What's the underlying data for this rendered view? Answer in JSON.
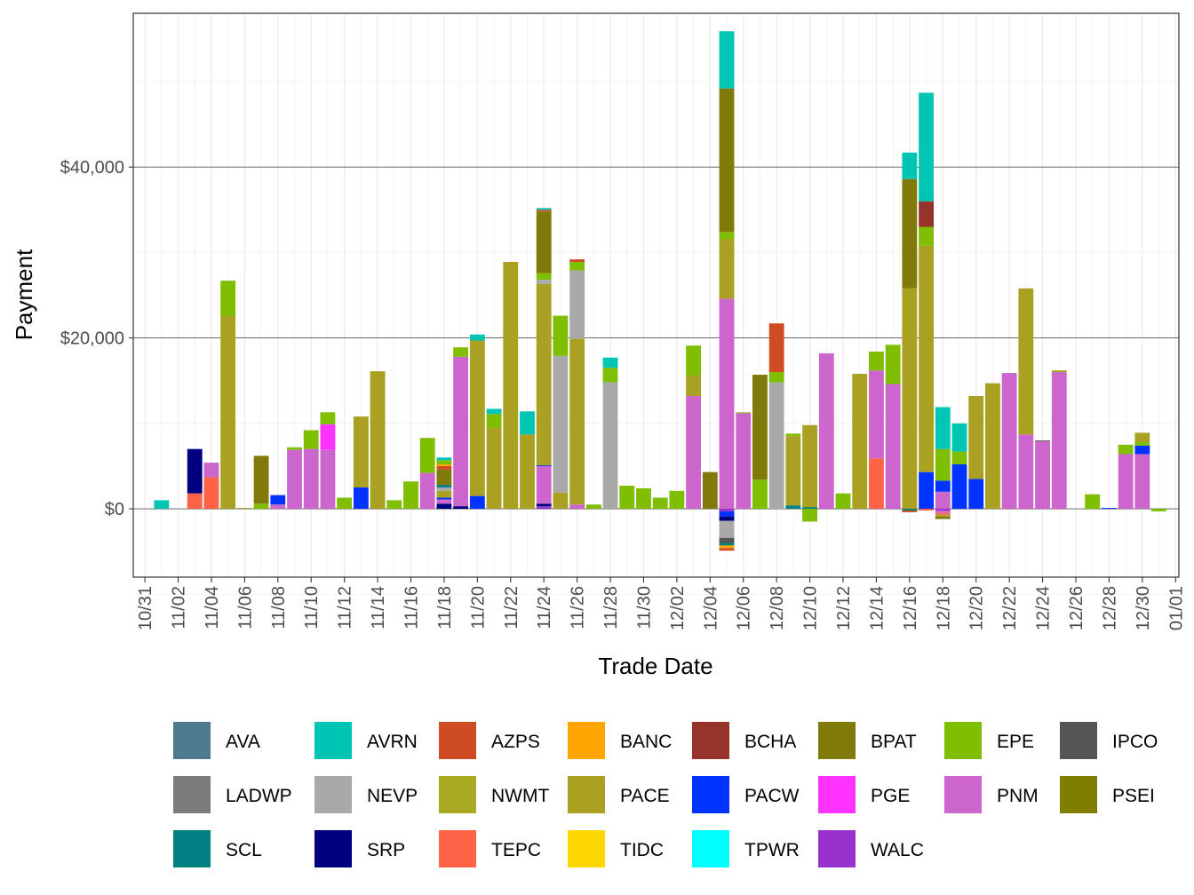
{
  "chart_data": {
    "type": "bar",
    "stacked": true,
    "title": "",
    "xlabel": "Trade Date",
    "ylabel": "Payment",
    "ylim": [
      -8000,
      58000
    ],
    "yticks": [
      0,
      20000,
      40000
    ],
    "ytick_labels": [
      "$0",
      "$20,000",
      "$40,000"
    ],
    "xlim": [
      -0.7,
      62.2
    ],
    "xticks": [
      0,
      2,
      4,
      6,
      8,
      10,
      12,
      14,
      16,
      18,
      20,
      22,
      24,
      26,
      28,
      30,
      32,
      34,
      36,
      38,
      40,
      42,
      44,
      46,
      48,
      50,
      52,
      54,
      56,
      58,
      60,
      62
    ],
    "xtick_labels": [
      "10/31",
      "11/02",
      "11/04",
      "11/06",
      "11/08",
      "11/10",
      "11/12",
      "11/14",
      "11/16",
      "11/18",
      "11/20",
      "11/22",
      "11/24",
      "11/26",
      "11/28",
      "11/30",
      "12/02",
      "12/04",
      "12/06",
      "12/08",
      "12/10",
      "12/12",
      "12/14",
      "12/16",
      "12/18",
      "12/20",
      "12/22",
      "12/24",
      "12/26",
      "12/28",
      "12/30",
      "01/01"
    ],
    "x_units": "days since 10/31",
    "grid": true,
    "legend_position": "bottom",
    "legend": [
      "AVA",
      "AVRN",
      "AZPS",
      "BANC",
      "BCHA",
      "BPAT",
      "EPE",
      "IPCO",
      "LADWP",
      "NEVP",
      "NWMT",
      "PACE",
      "PACW",
      "PGE",
      "PNM",
      "PSEI",
      "SCL",
      "SRP",
      "TEPC",
      "TIDC",
      "TPWR",
      "WALC"
    ],
    "colors": {
      "AVA": "#4e7a8f",
      "AVRN": "#00c5b4",
      "AZPS": "#cf4b23",
      "BANC": "#ffa500",
      "BCHA": "#96332a",
      "BPAT": "#807a0a",
      "EPE": "#7fbe00",
      "IPCO": "#555555",
      "LADWP": "#7b7b7b",
      "NEVP": "#a9a9a9",
      "NWMT": "#aaaa22",
      "PACE": "#aaa122",
      "PACW": "#0033ff",
      "PGE": "#ff33ff",
      "PNM": "#cc66cc",
      "PSEI": "#807e00",
      "SCL": "#008080",
      "SRP": "#000080",
      "TEPC": "#ff6347",
      "TIDC": "#ffd700",
      "TPWR": "#00ffff",
      "WALC": "#9932cc"
    },
    "bars": [
      {
        "x": 1,
        "segments": [
          {
            "s": "AVRN",
            "v": 1000
          }
        ]
      },
      {
        "x": 3,
        "segments": [
          {
            "s": "TEPC",
            "v": 1800
          }
        ]
      },
      {
        "x": 3,
        "segments": [
          {
            "s": "SRP",
            "v": 5200
          }
        ],
        "base": 1800
      },
      {
        "x": 4,
        "segments": [
          {
            "s": "TEPC",
            "v": 3700
          },
          {
            "s": "PNM",
            "v": 1700
          }
        ]
      },
      {
        "x": 5,
        "segments": [
          {
            "s": "PACE",
            "v": 22600
          },
          {
            "s": "EPE",
            "v": 4100
          }
        ]
      },
      {
        "x": 6,
        "segments": [
          {
            "s": "PACE",
            "v": 100
          }
        ]
      },
      {
        "x": 7,
        "segments": [
          {
            "s": "EPE",
            "v": 600
          },
          {
            "s": "BPAT",
            "v": 5600
          }
        ]
      },
      {
        "x": 8,
        "segments": [
          {
            "s": "PNM",
            "v": 500
          },
          {
            "s": "PACW",
            "v": 1100
          }
        ]
      },
      {
        "x": 9,
        "segments": [
          {
            "s": "PNM",
            "v": 6900
          },
          {
            "s": "EPE",
            "v": 300
          }
        ]
      },
      {
        "x": 10,
        "segments": [
          {
            "s": "PNM",
            "v": 7000
          },
          {
            "s": "EPE",
            "v": 2200
          }
        ]
      },
      {
        "x": 11,
        "segments": [
          {
            "s": "PNM",
            "v": 6900
          },
          {
            "s": "PGE",
            "v": 3000
          },
          {
            "s": "EPE",
            "v": 1400
          }
        ]
      },
      {
        "x": 12,
        "segments": [
          {
            "s": "EPE",
            "v": 1300
          }
        ]
      },
      {
        "x": 13,
        "segments": [
          {
            "s": "PACW",
            "v": 2500
          },
          {
            "s": "PACE",
            "v": 8300
          }
        ]
      },
      {
        "x": 14,
        "segments": [
          {
            "s": "PACE",
            "v": 16100
          }
        ]
      },
      {
        "x": 15,
        "segments": [
          {
            "s": "EPE",
            "v": 1000
          }
        ]
      },
      {
        "x": 16,
        "segments": [
          {
            "s": "EPE",
            "v": 3200
          }
        ]
      },
      {
        "x": 17,
        "segments": [
          {
            "s": "PNM",
            "v": 4200
          },
          {
            "s": "EPE",
            "v": 4100
          }
        ]
      },
      {
        "x": 18,
        "segments": [
          {
            "s": "SRP",
            "v": 600
          },
          {
            "s": "PNM",
            "v": 500
          },
          {
            "s": "PACW",
            "v": 200
          },
          {
            "s": "PACE",
            "v": 800
          },
          {
            "s": "NEVP",
            "v": 400
          },
          {
            "s": "SCL",
            "v": 300
          },
          {
            "s": "BPAT",
            "v": 1800
          },
          {
            "s": "AZPS",
            "v": 400
          },
          {
            "s": "BANC",
            "v": 200
          },
          {
            "s": "EPE",
            "v": 500
          },
          {
            "s": "AVRN",
            "v": 300
          }
        ]
      },
      {
        "x": 19,
        "segments": [
          {
            "s": "SRP",
            "v": 300
          },
          {
            "s": "PNM",
            "v": 17500
          },
          {
            "s": "EPE",
            "v": 1100
          }
        ]
      },
      {
        "x": 20,
        "segments": [
          {
            "s": "PACW",
            "v": 1500
          },
          {
            "s": "PACE",
            "v": 18200
          },
          {
            "s": "AVRN",
            "v": 700
          }
        ]
      },
      {
        "x": 21,
        "segments": [
          {
            "s": "PACE",
            "v": 9500
          },
          {
            "s": "EPE",
            "v": 1600
          },
          {
            "s": "AVRN",
            "v": 600
          }
        ]
      },
      {
        "x": 22,
        "segments": [
          {
            "s": "PACE",
            "v": 28900
          }
        ]
      },
      {
        "x": 23,
        "segments": [
          {
            "s": "PACE",
            "v": 8700
          },
          {
            "s": "AVRN",
            "v": 2700
          }
        ]
      },
      {
        "x": 24,
        "segments": [
          {
            "s": "WALC",
            "v": 300
          },
          {
            "s": "SRP",
            "v": 300
          },
          {
            "s": "PNM",
            "v": 4400
          },
          {
            "s": "PACW",
            "v": 100
          },
          {
            "s": "PACE",
            "v": 21200
          },
          {
            "s": "NEVP",
            "v": 500
          },
          {
            "s": "EPE",
            "v": 800
          },
          {
            "s": "BPAT",
            "v": 7200
          },
          {
            "s": "AZPS",
            "v": 200
          },
          {
            "s": "AVRN",
            "v": 200
          }
        ]
      },
      {
        "x": 25,
        "segments": [
          {
            "s": "PACE",
            "v": 1900
          },
          {
            "s": "NEVP",
            "v": 16000
          },
          {
            "s": "EPE",
            "v": 4700
          }
        ]
      },
      {
        "x": 26,
        "segments": [
          {
            "s": "PNM",
            "v": 500
          },
          {
            "s": "PACE",
            "v": 19400
          },
          {
            "s": "NEVP",
            "v": 8000
          },
          {
            "s": "EPE",
            "v": 1000
          },
          {
            "s": "AZPS",
            "v": 300
          }
        ]
      },
      {
        "x": 27,
        "segments": [
          {
            "s": "EPE",
            "v": 500
          }
        ]
      },
      {
        "x": 28,
        "segments": [
          {
            "s": "NEVP",
            "v": 14800
          },
          {
            "s": "EPE",
            "v": 1700
          },
          {
            "s": "AVRN",
            "v": 1200
          }
        ]
      },
      {
        "x": 29,
        "segments": [
          {
            "s": "EPE",
            "v": 2700
          }
        ]
      },
      {
        "x": 30,
        "segments": [
          {
            "s": "EPE",
            "v": 2400
          }
        ]
      },
      {
        "x": 31,
        "segments": [
          {
            "s": "EPE",
            "v": 1300
          }
        ]
      },
      {
        "x": 32,
        "segments": [
          {
            "s": "EPE",
            "v": 2100
          }
        ]
      },
      {
        "x": 33,
        "segments": [
          {
            "s": "PNM",
            "v": 13200
          },
          {
            "s": "PACE",
            "v": 2400
          },
          {
            "s": "EPE",
            "v": 3500
          }
        ]
      },
      {
        "x": 34,
        "segments": [
          {
            "s": "BPAT",
            "v": 4300
          }
        ]
      },
      {
        "x": 35,
        "segments": [
          {
            "s": "PNM",
            "v": 24600
          },
          {
            "s": "PACE",
            "v": 7000
          },
          {
            "s": "EPE",
            "v": 800
          },
          {
            "s": "BPAT",
            "v": 16800
          },
          {
            "s": "AVRN",
            "v": 6700
          }
        ],
        "neg": [
          {
            "s": "WALC",
            "v": 300
          },
          {
            "s": "PACW",
            "v": 600
          },
          {
            "s": "SRP",
            "v": 500
          },
          {
            "s": "NEVP",
            "v": 2000
          },
          {
            "s": "IPCO",
            "v": 600
          },
          {
            "s": "SCL",
            "v": 300
          },
          {
            "s": "BANC",
            "v": 300
          },
          {
            "s": "AZPS",
            "v": 300
          }
        ]
      },
      {
        "x": 36,
        "segments": [
          {
            "s": "PNM",
            "v": 11200
          },
          {
            "s": "EPE",
            "v": 100
          }
        ]
      },
      {
        "x": 37,
        "segments": [
          {
            "s": "EPE",
            "v": 3400
          },
          {
            "s": "BPAT",
            "v": 12300
          }
        ]
      },
      {
        "x": 38,
        "segments": [
          {
            "s": "NEVP",
            "v": 14800
          },
          {
            "s": "EPE",
            "v": 1200
          },
          {
            "s": "AZPS",
            "v": 5700
          }
        ]
      },
      {
        "x": 39,
        "segments": [
          {
            "s": "SCL",
            "v": 400
          },
          {
            "s": "PACE",
            "v": 8100
          },
          {
            "s": "EPE",
            "v": 300
          }
        ]
      },
      {
        "x": 40,
        "segments": [
          {
            "s": "SCL",
            "v": 200
          },
          {
            "s": "PACE",
            "v": 9600
          }
        ],
        "neg": [
          {
            "s": "EPE",
            "v": 1500
          }
        ]
      },
      {
        "x": 41,
        "segments": [
          {
            "s": "PNM",
            "v": 18200
          }
        ]
      },
      {
        "x": 42,
        "segments": [
          {
            "s": "EPE",
            "v": 1800
          }
        ]
      },
      {
        "x": 43,
        "segments": [
          {
            "s": "PACE",
            "v": 15800
          }
        ]
      },
      {
        "x": 44,
        "segments": [
          {
            "s": "TEPC",
            "v": 5900
          },
          {
            "s": "PNM",
            "v": 10300
          },
          {
            "s": "EPE",
            "v": 2200
          }
        ]
      },
      {
        "x": 45,
        "segments": [
          {
            "s": "PNM",
            "v": 14600
          },
          {
            "s": "EPE",
            "v": 4600
          }
        ]
      },
      {
        "x": 46,
        "segments": [
          {
            "s": "PACE",
            "v": 25800
          },
          {
            "s": "BPAT",
            "v": 12800
          },
          {
            "s": "AVRN",
            "v": 3100
          }
        ],
        "neg": [
          {
            "s": "SCL",
            "v": 200
          },
          {
            "s": "AZPS",
            "v": 200
          }
        ]
      },
      {
        "x": 47,
        "segments": [
          {
            "s": "PACW",
            "v": 4300
          },
          {
            "s": "PACE",
            "v": 26500
          },
          {
            "s": "EPE",
            "v": 2200
          },
          {
            "s": "BCHA",
            "v": 3000
          },
          {
            "s": "AVRN",
            "v": 12700
          }
        ],
        "neg": [
          {
            "s": "TEPC",
            "v": 200
          }
        ]
      },
      {
        "x": 48,
        "segments": [
          {
            "s": "PNM",
            "v": 2000
          },
          {
            "s": "PACW",
            "v": 1300
          },
          {
            "s": "EPE",
            "v": 3700
          },
          {
            "s": "AVRN",
            "v": 4900
          }
        ],
        "neg": [
          {
            "s": "WALC",
            "v": 200
          },
          {
            "s": "PNM",
            "v": 300
          },
          {
            "s": "TEPC",
            "v": 200
          },
          {
            "s": "PACE",
            "v": 200
          },
          {
            "s": "BPAT",
            "v": 300
          }
        ]
      },
      {
        "x": 49,
        "segments": [
          {
            "s": "PACW",
            "v": 5200
          },
          {
            "s": "EPE",
            "v": 1500
          },
          {
            "s": "AVRN",
            "v": 3300
          }
        ]
      },
      {
        "x": 50,
        "segments": [
          {
            "s": "PACW",
            "v": 3500
          },
          {
            "s": "PACE",
            "v": 9700
          }
        ]
      },
      {
        "x": 51,
        "segments": [
          {
            "s": "PACE",
            "v": 14700
          }
        ]
      },
      {
        "x": 52,
        "segments": [
          {
            "s": "PNM",
            "v": 15900
          }
        ]
      },
      {
        "x": 53,
        "segments": [
          {
            "s": "PNM",
            "v": 8700
          },
          {
            "s": "PACE",
            "v": 17100
          }
        ]
      },
      {
        "x": 54,
        "segments": [
          {
            "s": "PNM",
            "v": 7900
          },
          {
            "s": "IPCO",
            "v": 100
          }
        ]
      },
      {
        "x": 55,
        "segments": [
          {
            "s": "PNM",
            "v": 16000
          },
          {
            "s": "PACE",
            "v": 200
          }
        ]
      },
      {
        "x": 57,
        "segments": [
          {
            "s": "EPE",
            "v": 1700
          }
        ]
      },
      {
        "x": 58,
        "segments": [
          {
            "s": "PACW",
            "v": 100
          }
        ]
      },
      {
        "x": 59,
        "segments": [
          {
            "s": "PNM",
            "v": 6400
          },
          {
            "s": "EPE",
            "v": 1100
          }
        ]
      },
      {
        "x": 60,
        "segments": [
          {
            "s": "PNM",
            "v": 6400
          },
          {
            "s": "PACW",
            "v": 1000
          },
          {
            "s": "EPE",
            "v": 400
          },
          {
            "s": "PACE",
            "v": 1100
          }
        ]
      },
      {
        "x": 61,
        "neg": [
          {
            "s": "EPE",
            "v": 300
          }
        ]
      }
    ]
  }
}
